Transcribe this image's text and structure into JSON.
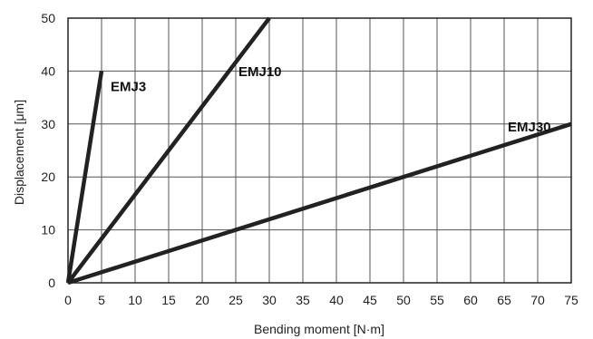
{
  "chart_data": {
    "type": "line",
    "xlabel": "Bending moment [N·m]",
    "ylabel": "Displacement [μm]",
    "xlim": [
      0,
      75
    ],
    "ylim": [
      0,
      50
    ],
    "x_ticks": [
      0,
      5,
      10,
      15,
      20,
      25,
      30,
      35,
      40,
      45,
      50,
      55,
      60,
      65,
      70,
      75
    ],
    "y_ticks": [
      0,
      10,
      20,
      30,
      40,
      50
    ],
    "grid": true,
    "line_color": "#222222",
    "series": [
      {
        "name": "EMJ3",
        "x": [
          0,
          5
        ],
        "y": [
          0,
          40
        ]
      },
      {
        "name": "EMJ10",
        "x": [
          0,
          30
        ],
        "y": [
          0,
          50
        ]
      },
      {
        "name": "EMJ30",
        "x": [
          0,
          75
        ],
        "y": [
          0,
          30
        ]
      }
    ]
  }
}
